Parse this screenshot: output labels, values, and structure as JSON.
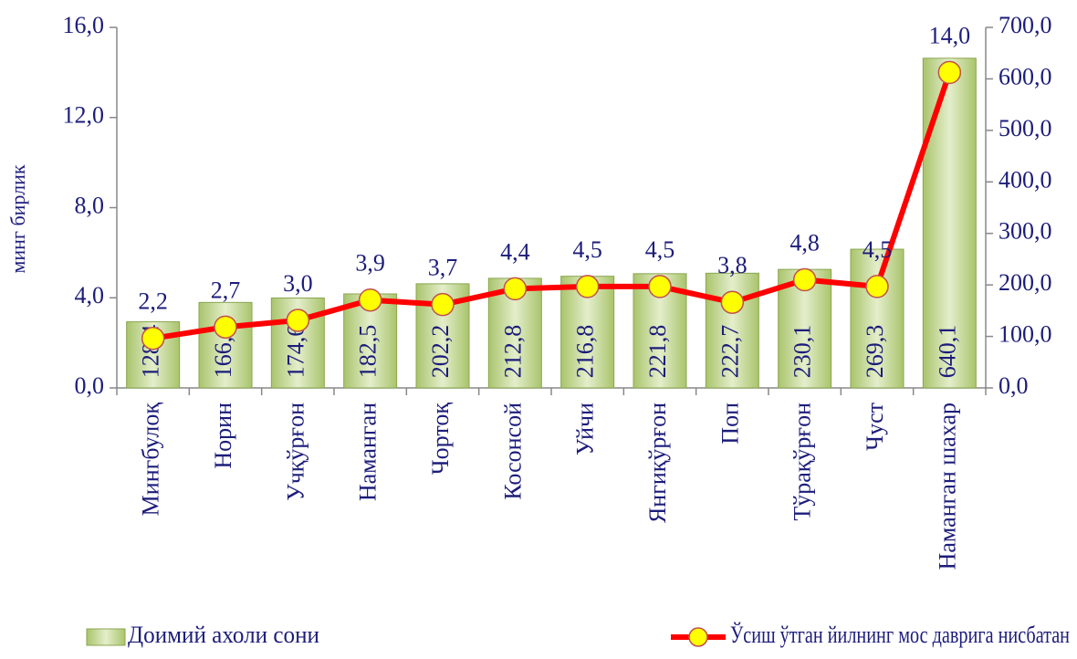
{
  "chart_data": {
    "type": "bar",
    "ylabel": "минг бирлик",
    "categories": [
      "Мингбулоқ",
      "Норин",
      "Учқўрғон",
      "Наманган",
      "Чортоқ",
      "Косонсой",
      "Уйчи",
      "Янгиқўрғон",
      "Поп",
      "Тўрақўрғон",
      "Чуст",
      "Наманган шахар"
    ],
    "series": [
      {
        "name": "Доимий ахоли сони",
        "type": "bar",
        "axis": "y2",
        "color": "#c4d79b",
        "values": [
          128.4,
          166.0,
          174.6,
          182.5,
          202.2,
          212.8,
          216.8,
          221.8,
          222.7,
          230.1,
          269.3,
          640.1
        ],
        "value_labels": [
          "128,4",
          "166,0",
          "174,6",
          "182,5",
          "202,2",
          "212,8",
          "216,8",
          "221,8",
          "222,7",
          "230,1",
          "269,3",
          "640,1"
        ]
      },
      {
        "name": "Ўсиш ўтган йилнинг мос даврига нисбатан",
        "type": "line",
        "axis": "y",
        "color": "#ff0000",
        "marker_color": "#ffff00",
        "values": [
          2.2,
          2.7,
          3.0,
          3.9,
          3.7,
          4.4,
          4.5,
          4.5,
          3.8,
          4.8,
          4.5,
          14.0
        ],
        "value_labels": [
          "2,2",
          "2,7",
          "3,0",
          "3,9",
          "3,7",
          "4,4",
          "4,5",
          "4,5",
          "3,8",
          "4,8",
          "4,5",
          "14,0"
        ]
      }
    ],
    "ylim": [
      0,
      16
    ],
    "yticks": [
      {
        "value": 0,
        "label": "0,0"
      },
      {
        "value": 4,
        "label": "4,0"
      },
      {
        "value": 8,
        "label": "8,0"
      },
      {
        "value": 12,
        "label": "12,0"
      },
      {
        "value": 16,
        "label": "16,0"
      }
    ],
    "y2lim": [
      0,
      700
    ],
    "y2ticks": [
      {
        "value": 0,
        "label": "0,0"
      },
      {
        "value": 100,
        "label": "100,0"
      },
      {
        "value": 200,
        "label": "200,0"
      },
      {
        "value": 300,
        "label": "300,0"
      },
      {
        "value": 400,
        "label": "400,0"
      },
      {
        "value": 500,
        "label": "500,0"
      },
      {
        "value": 600,
        "label": "600,0"
      },
      {
        "value": 700,
        "label": "700,0"
      }
    ],
    "legend": "bottom"
  }
}
